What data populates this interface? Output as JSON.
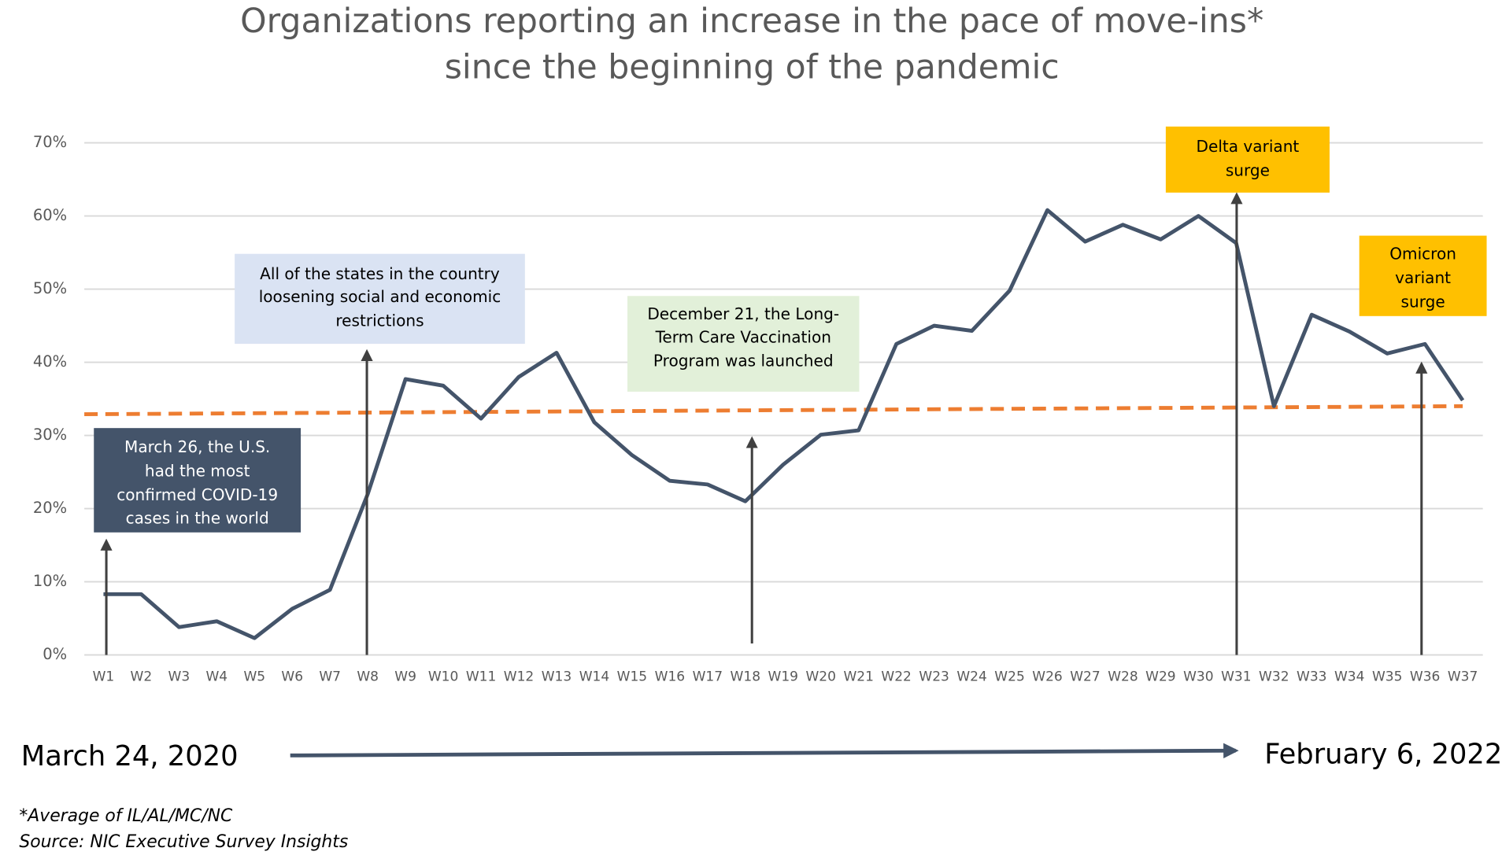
{
  "chart_data": {
    "type": "line",
    "title": [
      "Organizations reporting an increase in the pace of move-ins*",
      "since the beginning of the pandemic"
    ],
    "categories": [
      "W1",
      "W2",
      "W3",
      "W4",
      "W5",
      "W6",
      "W7",
      "W8",
      "W9",
      "W10",
      "W11",
      "W12",
      "W13",
      "W14",
      "W15",
      "W16",
      "W17",
      "W18",
      "W19",
      "W20",
      "W21",
      "W22",
      "W23",
      "W24",
      "W25",
      "W26",
      "W27",
      "W28",
      "W29",
      "W30",
      "W31",
      "W32",
      "W33",
      "W34",
      "W35",
      "W36",
      "W37"
    ],
    "series": [
      {
        "color": "#44546a",
        "values": [
          8.3,
          8.3,
          3.8,
          4.6,
          2.3,
          6.3,
          8.9,
          22,
          37.7,
          36.8,
          32.3,
          38,
          41.3,
          31.8,
          27.3,
          23.8,
          23.3,
          21,
          26,
          30.1,
          30.7,
          42.5,
          45,
          44.3,
          49.8,
          60.8,
          56.5,
          58.8,
          56.8,
          60,
          56.3,
          34,
          46.5,
          44.2,
          41.2,
          42.5,
          34.8
        ]
      }
    ],
    "trendline": {
      "color": "#ed7d31",
      "dashed": true,
      "values": [
        32.9,
        34.0
      ]
    },
    "ylim": [
      0,
      70
    ],
    "yticks": [
      {
        "value": 0,
        "label": "0%"
      },
      {
        "value": 10,
        "label": "10%"
      },
      {
        "value": 20,
        "label": "20%"
      },
      {
        "value": 30,
        "label": "30%"
      },
      {
        "value": 40,
        "label": "40%"
      },
      {
        "value": 50,
        "label": "50%"
      },
      {
        "value": 60,
        "label": "60%"
      },
      {
        "value": 70,
        "label": "70%"
      }
    ],
    "grid": true,
    "annotations": [
      {
        "lines": [
          "March 26, the U.S.",
          "had the most",
          "confirmed COVID-19",
          "cases in the world"
        ],
        "color": "#44546a"
      },
      {
        "lines": [
          "All of the states in the country",
          "loosening social and economic",
          "restrictions"
        ],
        "color": "#dae3f3"
      },
      {
        "lines": [
          "December 21, the Long-",
          "Term Care Vaccination",
          "Program was launched"
        ],
        "color": "#e2f0d9"
      },
      {
        "lines": [
          "Delta variant",
          "surge"
        ],
        "color": "#ffc000"
      },
      {
        "lines": [
          "Omicron",
          "variant",
          "surge"
        ],
        "color": "#ffc000"
      }
    ],
    "start_date": "March 24, 2020",
    "end_date": "February 6, 2022",
    "footnotes": [
      "*Average of IL/AL/MC/NC",
      "Source: NIC Executive Survey Insights"
    ]
  }
}
